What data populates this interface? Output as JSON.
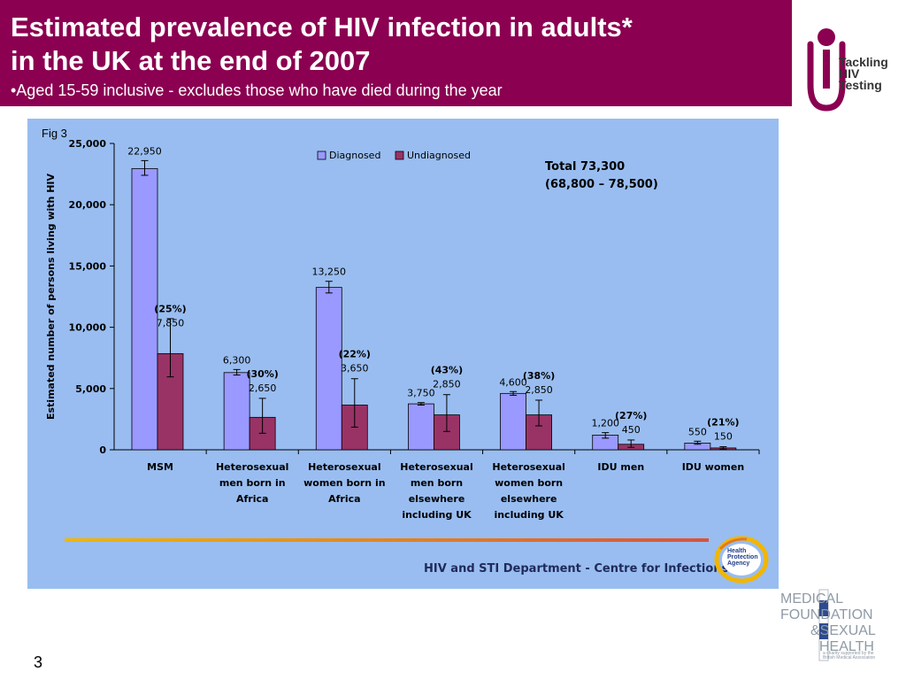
{
  "header": {
    "title_line1": "Estimated prevalence of HIV infection in adults*",
    "title_line2": "in the UK at the end of 2007",
    "subtitle": "•Aged 15-59 inclusive - excludes those who have died during the year"
  },
  "logo_top": {
    "text_lines": [
      "Tackling",
      "HIV",
      "Testing"
    ],
    "icon": "person-icon",
    "color": "#8b0051"
  },
  "fig_label": "Fig 3",
  "chart_data": {
    "type": "bar",
    "title": "",
    "ylabel": "Estimated number of persons living with HIV",
    "xlabel": "",
    "ylim": [
      0,
      25000
    ],
    "yticks": [
      0,
      5000,
      10000,
      15000,
      20000,
      25000
    ],
    "ytick_labels": [
      "0",
      "5,000",
      "10,000",
      "15,000",
      "20,000",
      "25,000"
    ],
    "grid": false,
    "legend_position": "top",
    "categories": [
      [
        "MSM"
      ],
      [
        "Heterosexual",
        "men born in",
        "Africa"
      ],
      [
        "Heterosexual",
        "women born in",
        "Africa"
      ],
      [
        "Heterosexual",
        "men born",
        "elsewhere",
        "including UK"
      ],
      [
        "Heterosexual",
        "women born",
        "elsewhere",
        "including UK"
      ],
      [
        "IDU men"
      ],
      [
        "IDU women"
      ]
    ],
    "series": [
      {
        "name": "Diagnosed",
        "color": "#9999ff",
        "values": [
          22950,
          6300,
          13250,
          3750,
          4600,
          1200,
          550
        ],
        "labels": [
          "22,950",
          "6,300",
          "13,250",
          "3,750",
          "4,600",
          "1,200",
          "550"
        ],
        "error_low": [
          22400,
          6100,
          12800,
          3650,
          4450,
          950,
          450
        ],
        "error_high": [
          23600,
          6550,
          13750,
          3850,
          4750,
          1400,
          700
        ]
      },
      {
        "name": "Undiagnosed",
        "color": "#993366",
        "values": [
          7850,
          2650,
          3650,
          2850,
          2850,
          450,
          150
        ],
        "labels": [
          "7,850",
          "2,650",
          "3,650",
          "2,850",
          "2,850",
          "450",
          "150"
        ],
        "percent_labels": [
          "(25%)",
          "(30%)",
          "(22%)",
          "(43%)",
          "(38%)",
          "(27%)",
          "(21%)"
        ],
        "error_low": [
          5950,
          1350,
          1850,
          1500,
          1950,
          200,
          60
        ],
        "error_high": [
          10700,
          4200,
          5800,
          4500,
          4050,
          800,
          250
        ]
      }
    ],
    "total_annotation": [
      "Total 73,300",
      "(68,800 – 78,500)"
    ]
  },
  "footer": {
    "department_text": "HIV and STI Department  - Centre for Infections",
    "hpa_logo_text": [
      "Health",
      "Protection",
      "Agency"
    ],
    "line_color_start": "#f2b600",
    "line_color_end": "#d8533b"
  },
  "mf_logo": {
    "lines": [
      "MEDICAL",
      "FOUNDATION",
      "&SEXUAL",
      "HEALTH"
    ],
    "small": [
      "a charity supported by the",
      "British Medical Association"
    ]
  },
  "page_number": "3"
}
